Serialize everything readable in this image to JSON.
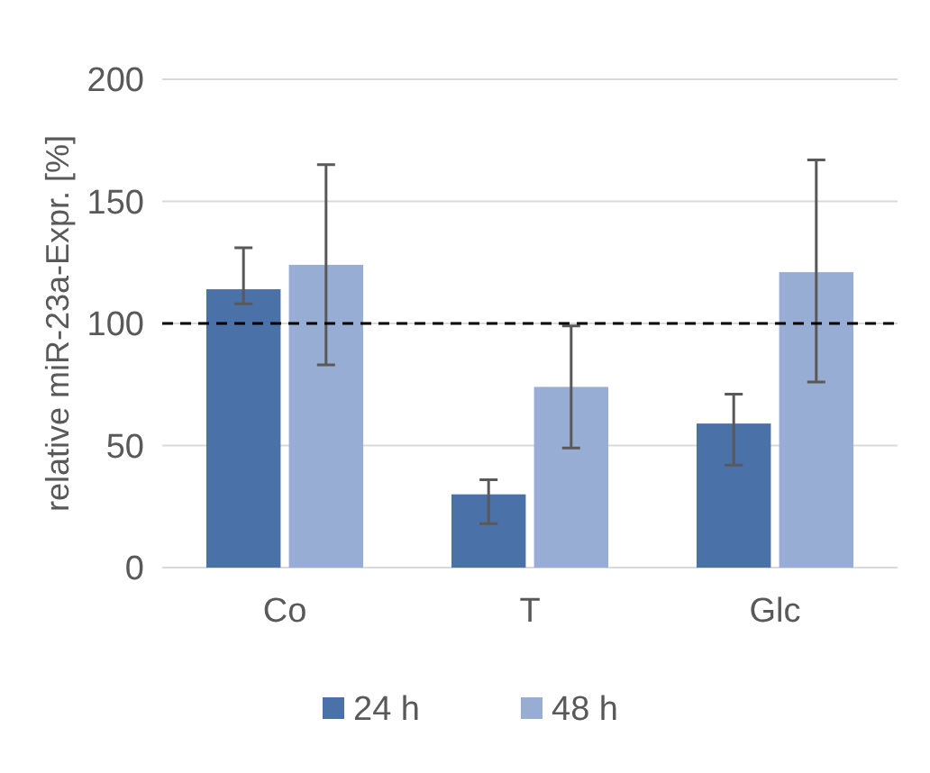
{
  "chart_data": {
    "type": "bar",
    "ylabel": "relative miR-23a-Expr. [%]",
    "categories": [
      "Co",
      "T",
      "Glc"
    ],
    "series": [
      {
        "name": "24 h",
        "color": "#4a72a8",
        "values": [
          114,
          30,
          59
        ],
        "errors": [
          [
            108,
            131
          ],
          [
            18,
            36
          ],
          [
            42,
            71
          ]
        ]
      },
      {
        "name": "48 h",
        "color": "#98add3",
        "values": [
          124,
          74,
          121
        ],
        "errors": [
          [
            83,
            165
          ],
          [
            49,
            99
          ],
          [
            76,
            167
          ]
        ]
      }
    ],
    "ylim": [
      0,
      200
    ],
    "yticks": [
      0,
      50,
      100,
      150,
      200
    ],
    "grid": "y",
    "legend": "bottom",
    "ref_lines": [
      {
        "axis": "y",
        "value": 100,
        "color": "#000000",
        "line_style": "dashed"
      }
    ]
  }
}
